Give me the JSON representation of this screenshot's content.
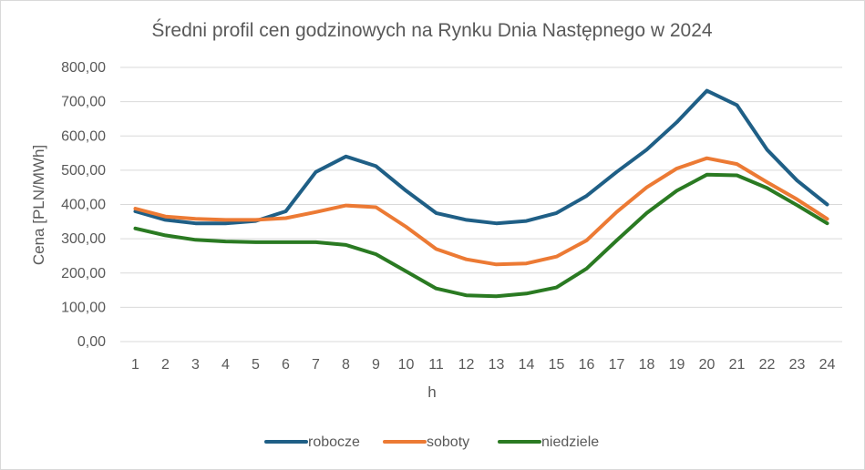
{
  "chart_data": {
    "type": "line",
    "title": "Średni profil cen godzinowych na Rynku Dnia Następnego w 2024",
    "xlabel": "h",
    "ylabel": "Cena [PLN/MWh]",
    "categories": [
      "1",
      "2",
      "3",
      "4",
      "5",
      "6",
      "7",
      "8",
      "9",
      "10",
      "11",
      "12",
      "13",
      "14",
      "15",
      "16",
      "17",
      "18",
      "19",
      "20",
      "21",
      "22",
      "23",
      "24"
    ],
    "ylim": [
      0,
      800
    ],
    "yticks": [
      0,
      100,
      200,
      300,
      400,
      500,
      600,
      700,
      800
    ],
    "ytick_labels": [
      "0,00",
      "100,00",
      "200,00",
      "300,00",
      "400,00",
      "500,00",
      "600,00",
      "700,00",
      "800,00"
    ],
    "grid": true,
    "legend_position": "bottom",
    "series": [
      {
        "name": "robocze",
        "color": "#1f5f86",
        "values": [
          380,
          355,
          345,
          345,
          352,
          380,
          495,
          540,
          512,
          440,
          375,
          355,
          345,
          352,
          375,
          425,
          495,
          560,
          640,
          732,
          690,
          560,
          470,
          400
        ]
      },
      {
        "name": "soboty",
        "color": "#ec7a34",
        "values": [
          388,
          365,
          358,
          355,
          355,
          360,
          378,
          397,
          392,
          335,
          270,
          240,
          225,
          228,
          248,
          295,
          378,
          450,
          505,
          535,
          518,
          465,
          415,
          358
        ]
      },
      {
        "name": "niedziele",
        "color": "#2a7a22",
        "values": [
          330,
          310,
          297,
          292,
          290,
          290,
          290,
          282,
          255,
          205,
          155,
          135,
          132,
          140,
          158,
          213,
          295,
          375,
          440,
          487,
          485,
          448,
          398,
          345
        ]
      }
    ]
  }
}
